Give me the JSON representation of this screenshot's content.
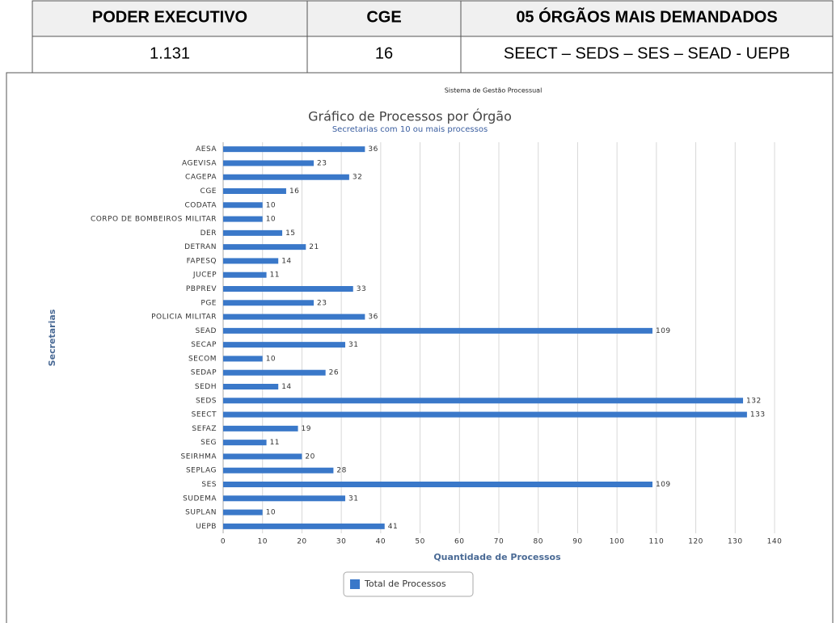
{
  "table": {
    "header": [
      "PODER EXECUTIVO",
      "CGE",
      "05 ÓRGÃOS MAIS DEMANDADOS"
    ],
    "rows": [
      [
        "1.131",
        "16",
        "SEECT – SEDS – SES – SEAD - UEPB"
      ]
    ]
  },
  "chart_data": {
    "type": "bar",
    "orientation": "horizontal",
    "caption": "Sistema de Gestão Processual",
    "title": "Gráfico de Processos por Órgão",
    "subtitle": "Secretarias com 10 ou mais processos",
    "x_label": "Quantidade de Processos",
    "y_label": "Secretarias",
    "categories": [
      "AESA",
      "AGEVISA",
      "CAGEPA",
      "CGE",
      "CODATA",
      "CORPO DE BOMBEIROS MILITAR",
      "DER",
      "DETRAN",
      "FAPESQ",
      "JUCEP",
      "PBPREV",
      "PGE",
      "POLICIA MILITAR",
      "SEAD",
      "SECAP",
      "SECOM",
      "SEDAP",
      "SEDH",
      "SEDS",
      "SEECT",
      "SEFAZ",
      "SEG",
      "SEIRHMA",
      "SEPLAG",
      "SES",
      "SUDEMA",
      "SUPLAN",
      "UEPB"
    ],
    "series": [
      {
        "name": "Total de Processos",
        "color": "#3a78c9",
        "values": [
          36,
          23,
          32,
          16,
          10,
          10,
          15,
          21,
          14,
          11,
          33,
          23,
          36,
          109,
          31,
          10,
          26,
          14,
          132,
          133,
          19,
          11,
          20,
          28,
          109,
          31,
          10,
          41
        ]
      }
    ],
    "xlim": [
      0,
      140
    ],
    "xticks": [
      0,
      10,
      20,
      30,
      40,
      50,
      60,
      70,
      80,
      90,
      100,
      110,
      120,
      130,
      140
    ],
    "grid": true,
    "legend": "bottom"
  }
}
